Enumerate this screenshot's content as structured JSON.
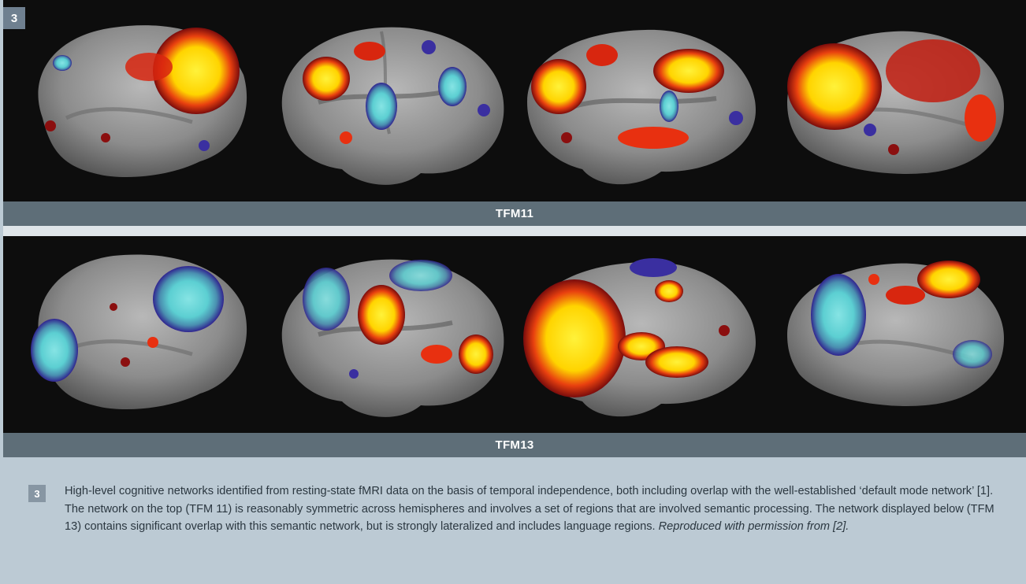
{
  "figure_number": "3",
  "panels": [
    {
      "label": "TFM11"
    },
    {
      "label": "TFM13"
    }
  ],
  "caption": {
    "number": "3",
    "text": "High-level cognitive networks identified from resting-state fMRI data on the basis of temporal independence, both including overlap with the well-established ‘default mode network’ [1]. The network on the top (TFM 11) is reasonably symmetric across hemispheres and involves a set of regions that are involved semantic processing. The network displayed below (TFM 13) contains significant overlap with this semantic network, but is strongly lateralized and includes language regions.",
    "credit": "Reproduced with permission from [2]."
  },
  "colors": {
    "background": "#bccad4",
    "panel_bar": "#5e6e78",
    "cortex": "#8a8a8a",
    "activation_hot": "#ffe600",
    "activation_mid": "#e83010",
    "activation_low": "#8b0f0f",
    "deactivation_blue": "#3a2fa0",
    "deactivation_cyan": "#6fd6d6"
  }
}
